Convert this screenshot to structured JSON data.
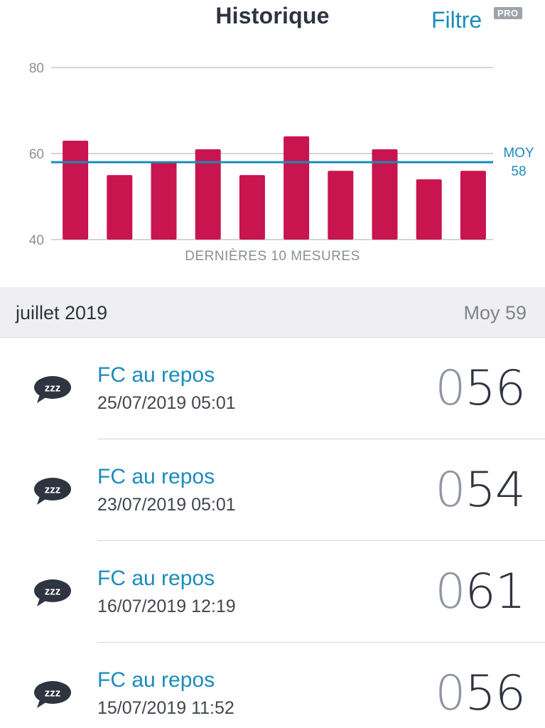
{
  "header": {
    "title": "Historique",
    "filter_label": "Filtre",
    "pro_badge": "PRO"
  },
  "chart_data": {
    "type": "bar",
    "values": [
      63,
      55,
      58,
      61,
      55,
      64,
      56,
      61,
      54,
      56
    ],
    "ylim": [
      40,
      80
    ],
    "yticks": [
      40,
      60,
      80
    ],
    "xlabel": "DERNIÈRES 10 MESURES",
    "average": {
      "label": "MOY",
      "value": 58
    },
    "bar_color": "#c8144f",
    "average_color": "#1a8bbd",
    "grid": true
  },
  "month": {
    "label": "juillet 2019",
    "average": "Moy 59"
  },
  "items": [
    {
      "icon": "sleep-bubble-icon",
      "icon_text": "zzz",
      "title": "FC au repos",
      "date": "25/07/2019 05:01",
      "value_lead": "0",
      "value_main": "56"
    },
    {
      "icon": "sleep-bubble-icon",
      "icon_text": "zzz",
      "title": "FC au repos",
      "date": "23/07/2019 05:01",
      "value_lead": "0",
      "value_main": "54"
    },
    {
      "icon": "sleep-bubble-icon",
      "icon_text": "zzz",
      "title": "FC au repos",
      "date": "16/07/2019 12:19",
      "value_lead": "0",
      "value_main": "61"
    },
    {
      "icon": "sleep-bubble-icon",
      "icon_text": "zzz",
      "title": "FC au repos",
      "date": "15/07/2019 11:52",
      "value_lead": "0",
      "value_main": "56"
    }
  ],
  "colors": {
    "accent": "#1a8bbd",
    "text_dark": "#2e3440",
    "section_bg": "#efeff1"
  }
}
